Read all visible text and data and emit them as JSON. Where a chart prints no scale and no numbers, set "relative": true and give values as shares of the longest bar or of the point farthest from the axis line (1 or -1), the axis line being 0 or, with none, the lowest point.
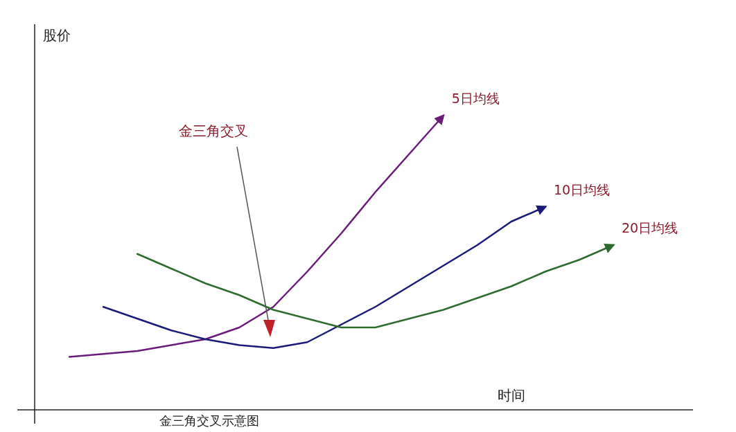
{
  "chart_data": {
    "type": "line",
    "relative": true,
    "title": "金三角交叉示意图",
    "xlabel": "时间",
    "categories": [
      null,
      null,
      null,
      null,
      null,
      null,
      null,
      null,
      null,
      null,
      null,
      null,
      null,
      null,
      null,
      null,
      null
    ],
    "series": [
      {
        "name": "5日均线",
        "color": "#6a1b7a",
        "values": [
          0.18,
          0.19,
          0.2,
          0.22,
          0.24,
          0.28,
          0.35,
          0.47,
          0.6,
          0.74,
          0.87,
          1,
          null,
          null,
          null,
          null,
          null
        ]
      },
      {
        "name": "10日均线",
        "color": "#1a1a7a",
        "values": [
          null,
          0.35,
          0.31,
          0.27,
          0.24,
          0.22,
          0.21,
          0.23,
          0.29,
          0.35,
          0.42,
          0.49,
          0.56,
          0.64,
          0.69,
          null,
          null
        ]
      },
      {
        "name": "20日均线",
        "color": "#2e6b2e",
        "values": [
          null,
          null,
          0.53,
          0.48,
          0.43,
          0.39,
          0.34,
          0.31,
          0.28,
          0.28,
          0.31,
          0.34,
          0.38,
          0.42,
          0.47,
          0.51,
          0.56
        ]
      }
    ],
    "annotations": [
      "金三角交叉",
      "股价"
    ]
  }
}
